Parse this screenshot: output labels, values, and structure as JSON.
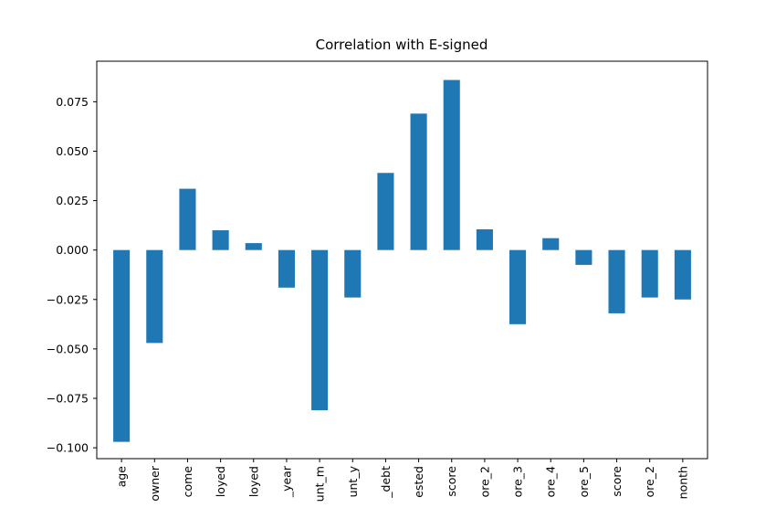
{
  "chart_data": {
    "type": "bar",
    "title": "Correlation with E-signed",
    "xlabel": "",
    "ylabel": "",
    "categories": [
      "age",
      "owner",
      "come",
      "loyed",
      "loyed",
      "_year",
      "unt_m",
      "unt_y",
      "_debt",
      "ested",
      "score",
      "ore_2",
      "ore_3",
      "ore_4",
      "ore_5",
      "score",
      "ore_2",
      "nonth"
    ],
    "values": [
      -0.097,
      -0.047,
      0.031,
      0.01,
      0.0035,
      -0.019,
      -0.081,
      -0.024,
      0.039,
      0.069,
      0.086,
      0.0105,
      -0.0375,
      0.006,
      -0.0075,
      -0.032,
      -0.024,
      -0.025
    ],
    "ylim": [
      -0.1055,
      0.0955
    ],
    "yticks": [
      -0.1,
      -0.075,
      -0.05,
      -0.025,
      0.0,
      0.025,
      0.05,
      0.075
    ],
    "ytick_labels": [
      "−0.100",
      "−0.075",
      "−0.050",
      "−0.025",
      "0.000",
      "0.025",
      "0.050",
      "0.075"
    ],
    "bar_color": "#1f77b4",
    "grid": false,
    "legend": "none"
  }
}
